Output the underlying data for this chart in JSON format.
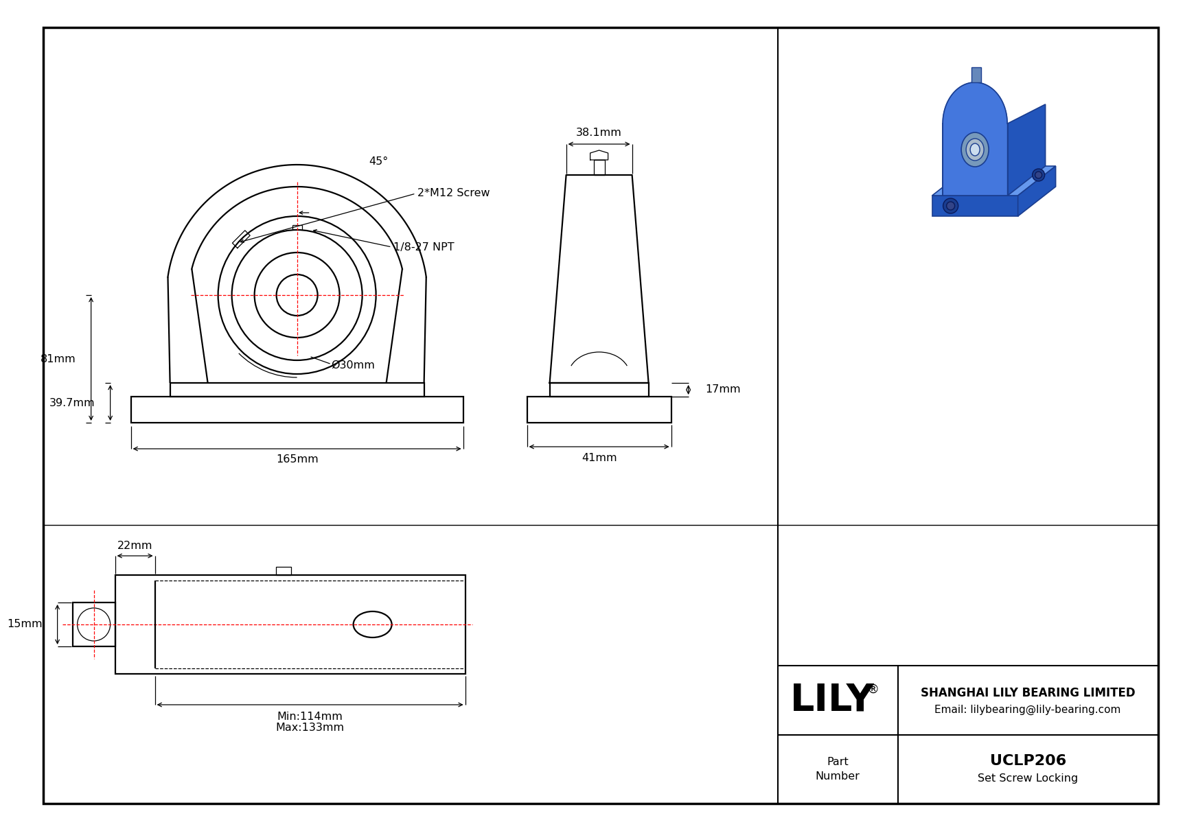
{
  "bg_color": "#ffffff",
  "lc": "#000000",
  "rc": "#ff0000",
  "company": "SHANGHAI LILY BEARING LIMITED",
  "email": "Email: lilybearing@lily-bearing.com",
  "part_number": "UCLP206",
  "locking": "Set Screw Locking",
  "part_label": "Part\nNumber",
  "d_81": "81mm",
  "d_397": "39.7mm",
  "d_165": "165mm",
  "d_bore": "Ø30mm",
  "d_45": "45°",
  "d_screw": "2*M12 Screw",
  "d_npt": "1/8-27 NPT",
  "d_381": "38.1mm",
  "d_17": "17mm",
  "d_41": "41mm",
  "d_22": "22mm",
  "d_15": "15mm",
  "d_min": "Min:114mm",
  "d_max": "Max:133mm",
  "blue1": "#1a3d8f",
  "blue2": "#2255bb",
  "blue3": "#4477dd",
  "blue4": "#6699ee",
  "blue_bore": "#8899cc",
  "gray_bore": "#aabbcc"
}
